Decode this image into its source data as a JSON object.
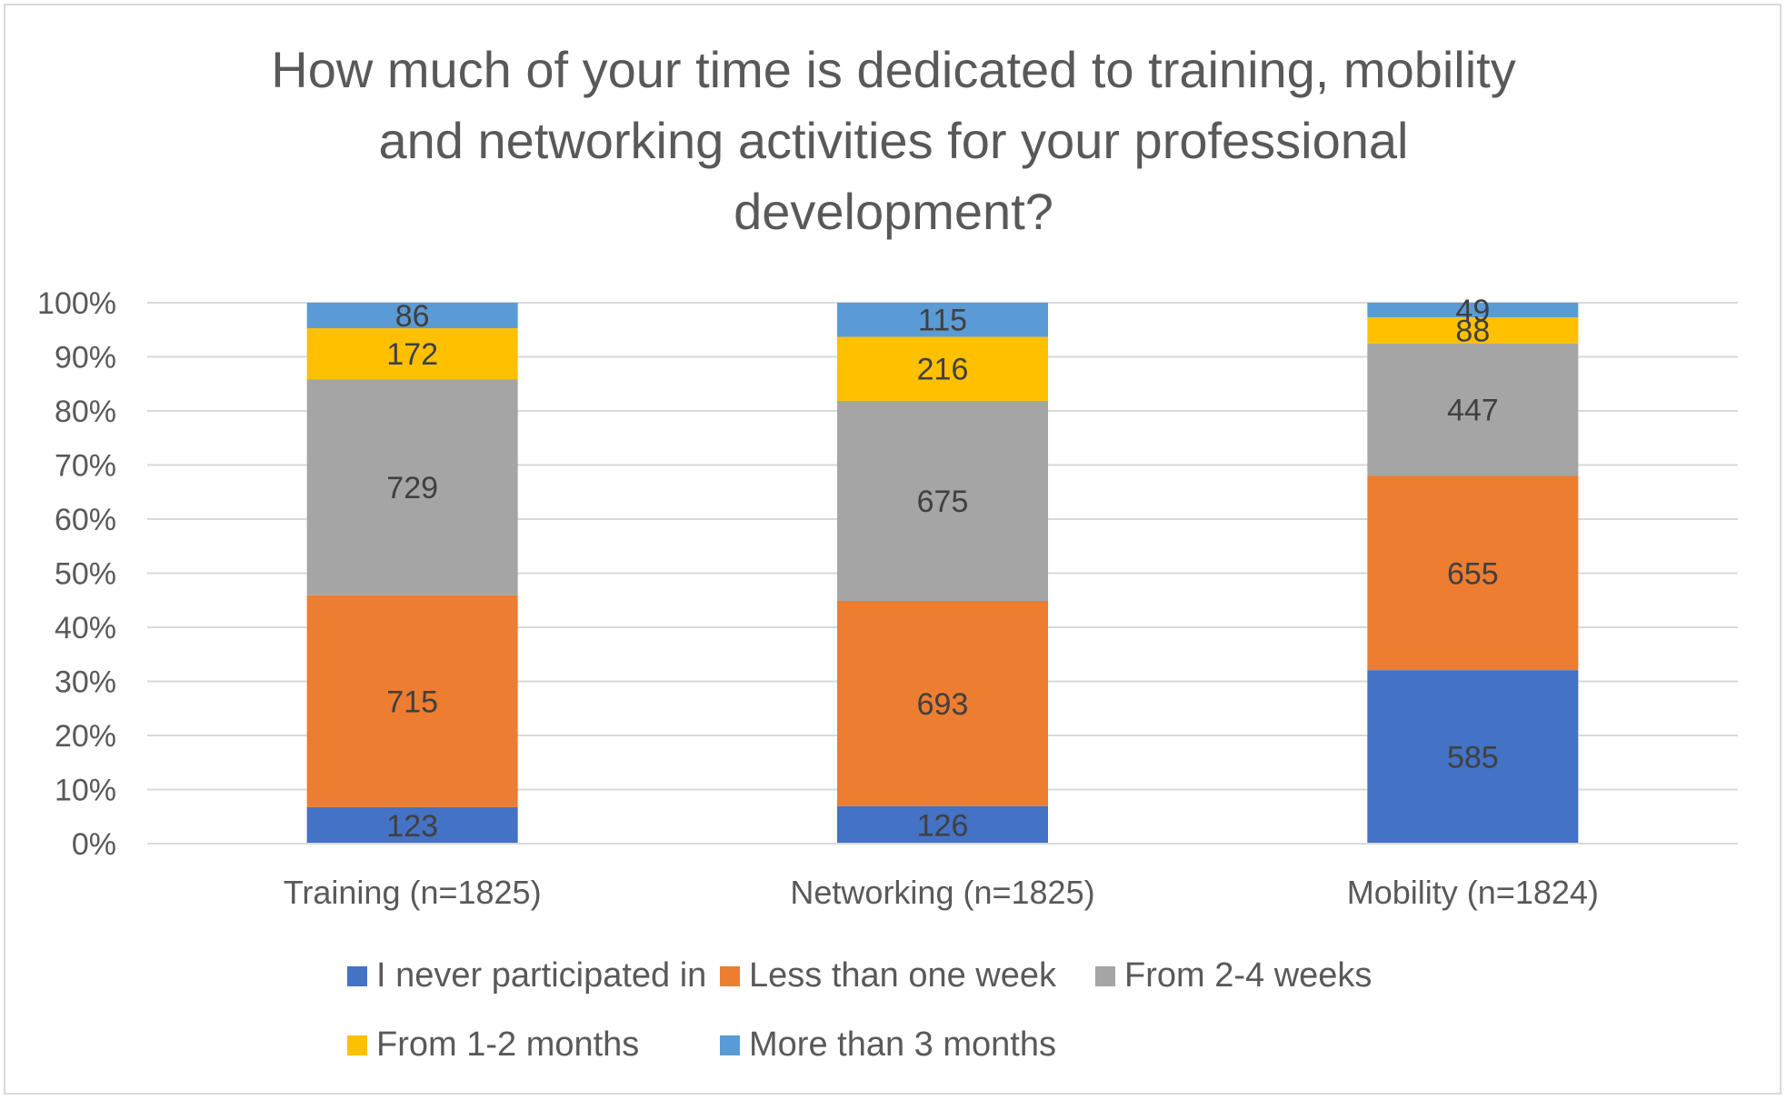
{
  "chart_data": {
    "type": "bar",
    "stacked": "percent",
    "title": "How much of your time is dedicated to training, mobility and networking activities for your professional development?",
    "title_lines": [
      "How much of your time is dedicated to training, mobility",
      "and networking activities for your professional",
      "development?"
    ],
    "categories": [
      "Training (n=1825)",
      "Networking (n=1825)",
      "Mobility (n=1824)"
    ],
    "yticks": [
      "0%",
      "10%",
      "20%",
      "30%",
      "40%",
      "50%",
      "60%",
      "70%",
      "80%",
      "90%",
      "100%"
    ],
    "ylim": [
      0,
      100
    ],
    "grid": true,
    "legend_position": "bottom",
    "series": [
      {
        "name": "I never participated in",
        "color": "#4472C4",
        "values": [
          123,
          126,
          585
        ]
      },
      {
        "name": "Less than one week",
        "color": "#ED7D31",
        "values": [
          715,
          693,
          655
        ]
      },
      {
        "name": "From 2-4 weeks",
        "color": "#A5A5A5",
        "values": [
          729,
          675,
          447
        ]
      },
      {
        "name": "From 1-2 months",
        "color": "#FFC000",
        "values": [
          172,
          216,
          88
        ]
      },
      {
        "name": "More than 3 months",
        "color": "#5B9BD5",
        "values": [
          86,
          115,
          49
        ]
      }
    ]
  }
}
